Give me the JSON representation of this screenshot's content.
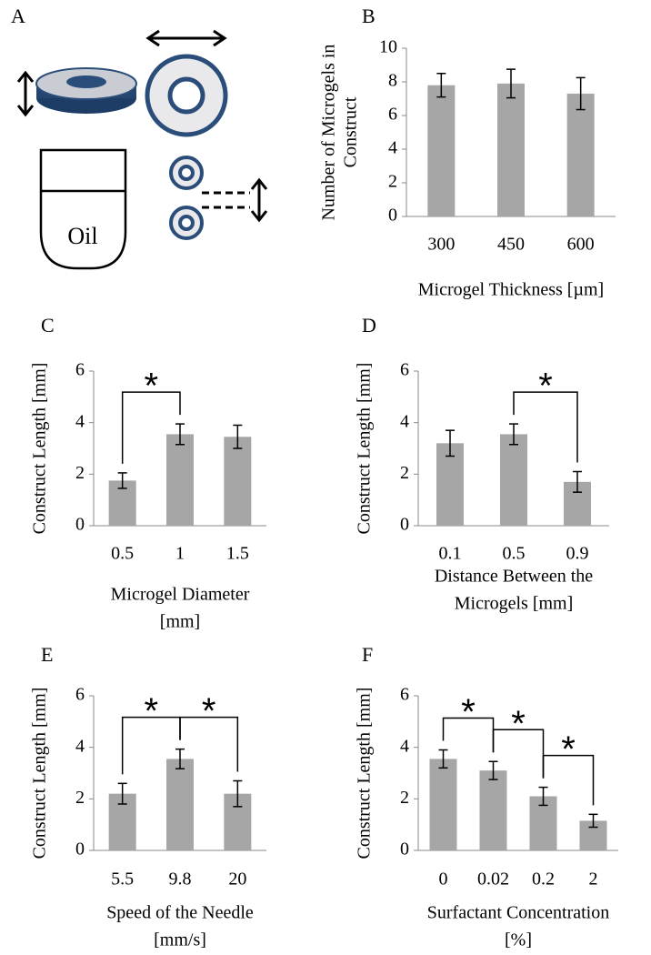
{
  "diagram": {
    "panel_label": "A",
    "text": "Oil"
  },
  "chart_data": [
    {
      "type": "bar",
      "panel_label": "B",
      "categories": [
        "300",
        "450",
        "600"
      ],
      "values": [
        7.8,
        7.9,
        7.3
      ],
      "errors": [
        0.7,
        0.85,
        0.95
      ],
      "ylabel": [
        "Number of Microgels in",
        "Construct"
      ],
      "xlabel": [
        "Microgel Thickness [µm]"
      ],
      "ylim": [
        0,
        10
      ],
      "yticks": [
        0,
        2,
        4,
        6,
        8,
        10
      ],
      "color": "#a6a6a6",
      "significance": []
    },
    {
      "type": "bar",
      "panel_label": "C",
      "categories": [
        "0.5",
        "1",
        "1.5"
      ],
      "values": [
        1.75,
        3.55,
        3.45
      ],
      "errors": [
        0.3,
        0.4,
        0.45
      ],
      "ylabel": [
        "Construct Length [mm]"
      ],
      "xlabel": [
        "Microgel Diameter",
        "[mm]"
      ],
      "ylim": [
        0,
        6
      ],
      "yticks": [
        0,
        2,
        4,
        6
      ],
      "color": "#a6a6a6",
      "significance": [
        {
          "pair": [
            0,
            1
          ],
          "label": "*"
        }
      ]
    },
    {
      "type": "bar",
      "panel_label": "D",
      "categories": [
        "0.1",
        "0.5",
        "0.9"
      ],
      "values": [
        3.2,
        3.55,
        1.7
      ],
      "errors": [
        0.5,
        0.4,
        0.4
      ],
      "ylabel": [
        "Construct Length [mm]"
      ],
      "xlabel": [
        "Distance Between the",
        "Microgels [mm]"
      ],
      "ylim": [
        0,
        6
      ],
      "yticks": [
        0,
        2,
        4,
        6
      ],
      "color": "#a6a6a6",
      "significance": [
        {
          "pair": [
            1,
            2
          ],
          "label": "*"
        }
      ]
    },
    {
      "type": "bar",
      "panel_label": "E",
      "categories": [
        "5.5",
        "9.8",
        "20"
      ],
      "values": [
        2.2,
        3.55,
        2.2
      ],
      "errors": [
        0.4,
        0.38,
        0.5
      ],
      "ylabel": [
        "Construct Length [mm]"
      ],
      "xlabel": [
        "Speed of the Needle",
        "[mm/s]"
      ],
      "ylim": [
        0,
        6
      ],
      "yticks": [
        0,
        2,
        4,
        6
      ],
      "color": "#a6a6a6",
      "significance": [
        {
          "pair": [
            0,
            1
          ],
          "label": "*"
        },
        {
          "pair": [
            1,
            2
          ],
          "label": "*"
        }
      ]
    },
    {
      "type": "bar",
      "panel_label": "F",
      "categories": [
        "0",
        "0.02",
        "0.2",
        "2"
      ],
      "values": [
        3.55,
        3.1,
        2.1,
        1.15
      ],
      "errors": [
        0.35,
        0.35,
        0.35,
        0.25
      ],
      "ylabel": [
        "Construct Length [mm]"
      ],
      "xlabel": [
        "Surfactant Concentration",
        "[%]"
      ],
      "ylim": [
        0,
        6
      ],
      "yticks": [
        0,
        2,
        4,
        6
      ],
      "color": "#a6a6a6",
      "significance": [
        {
          "pair": [
            0,
            1
          ],
          "label": "*"
        },
        {
          "pair": [
            1,
            2
          ],
          "label": "*"
        },
        {
          "pair": [
            2,
            3
          ],
          "label": "*"
        }
      ]
    }
  ]
}
